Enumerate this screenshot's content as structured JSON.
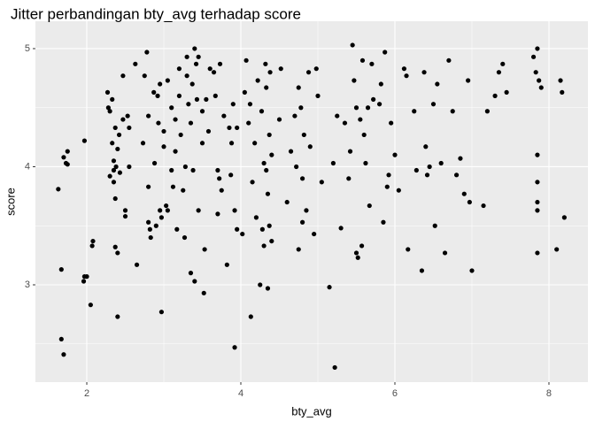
{
  "chart_data": {
    "type": "scatter",
    "title": "Jitter perbandingan bty_avg terhadap score",
    "x_label": "bty_avg",
    "y_label": "score",
    "color": "#000000",
    "grid": true,
    "xlim": [
      1.333,
      8.506
    ],
    "ylim": [
      2.176,
      5.232
    ],
    "xticks": [
      2,
      4,
      6,
      8
    ],
    "yticks": [
      3,
      4,
      5
    ],
    "minor_xticks": [
      3,
      5,
      7
    ],
    "minor_yticks": [
      2.5,
      3.5,
      4.5
    ],
    "x": [
      1.63,
      1.67,
      1.67,
      1.7,
      1.7,
      1.73,
      1.75,
      1.75,
      1.97,
      1.96,
      1.97,
      2.0,
      2.05,
      2.07,
      2.08,
      2.27,
      2.28,
      2.3,
      2.3,
      2.33,
      2.33,
      2.35,
      2.35,
      2.35,
      2.37,
      2.37,
      2.37,
      2.4,
      2.4,
      2.38,
      2.4,
      2.42,
      2.43,
      2.47,
      2.47,
      2.5,
      2.5,
      2.53,
      2.55,
      2.55,
      2.63,
      2.65,
      2.73,
      2.75,
      2.78,
      2.8,
      2.8,
      2.8,
      2.82,
      2.83,
      2.87,
      2.88,
      2.9,
      2.92,
      2.93,
      2.95,
      2.97,
      2.97,
      2.95,
      3.0,
      3.0,
      3.03,
      3.05,
      3.05,
      3.1,
      3.1,
      3.12,
      3.15,
      3.15,
      3.17,
      3.2,
      3.2,
      3.22,
      3.25,
      3.27,
      3.28,
      3.3,
      3.3,
      3.32,
      3.35,
      3.35,
      3.37,
      3.38,
      3.4,
      3.4,
      3.42,
      3.43,
      3.45,
      3.45,
      3.5,
      3.5,
      3.52,
      3.53,
      3.55,
      3.58,
      3.6,
      3.65,
      3.67,
      3.7,
      3.7,
      3.72,
      3.73,
      3.75,
      3.78,
      3.82,
      3.85,
      3.87,
      3.88,
      3.9,
      3.92,
      3.92,
      3.95,
      3.95,
      4.02,
      4.05,
      4.07,
      4.1,
      4.12,
      4.13,
      4.15,
      4.18,
      4.2,
      4.22,
      4.25,
      4.27,
      4.28,
      4.3,
      4.3,
      4.32,
      4.33,
      4.33,
      4.35,
      4.35,
      4.37,
      4.37,
      4.38,
      4.4,
      4.4,
      4.5,
      4.52,
      4.6,
      4.65,
      4.7,
      4.72,
      4.75,
      4.75,
      4.78,
      4.8,
      4.8,
      4.82,
      4.85,
      4.88,
      4.9,
      4.95,
      4.98,
      5.0,
      5.05,
      5.15,
      5.2,
      5.22,
      5.25,
      5.3,
      5.35,
      5.4,
      5.42,
      5.45,
      5.47,
      5.5,
      5.5,
      5.52,
      5.55,
      5.57,
      5.58,
      5.6,
      5.62,
      5.65,
      5.67,
      5.7,
      5.72,
      5.8,
      5.82,
      5.85,
      5.87,
      5.9,
      5.92,
      5.95,
      6.0,
      6.05,
      6.12,
      6.15,
      6.17,
      6.25,
      6.28,
      6.35,
      6.38,
      6.4,
      6.42,
      6.45,
      6.5,
      6.52,
      6.55,
      6.6,
      6.65,
      6.7,
      6.75,
      6.8,
      6.85,
      6.9,
      6.95,
      6.97,
      7.0,
      7.15,
      7.2,
      7.3,
      7.35,
      7.4,
      7.45,
      7.8,
      7.83,
      7.85,
      7.85,
      7.85,
      7.85,
      7.85,
      7.85,
      7.87,
      7.9,
      8.1,
      8.15,
      8.17,
      8.2
    ],
    "values": [
      3.81,
      3.13,
      2.54,
      2.41,
      4.08,
      4.03,
      4.13,
      4.02,
      4.22,
      3.03,
      3.07,
      3.07,
      2.83,
      3.33,
      3.37,
      4.63,
      4.5,
      4.47,
      3.92,
      4.57,
      4.2,
      4.05,
      3.97,
      3.87,
      4.33,
      3.73,
      3.32,
      3.27,
      2.73,
      4.0,
      4.15,
      4.27,
      3.95,
      4.77,
      4.4,
      3.63,
      3.58,
      4.43,
      4.33,
      4.0,
      4.87,
      3.17,
      4.2,
      4.77,
      4.97,
      4.43,
      3.83,
      3.53,
      3.47,
      3.4,
      4.63,
      4.03,
      3.5,
      4.6,
      4.37,
      4.7,
      3.57,
      2.77,
      3.63,
      4.3,
      4.17,
      3.67,
      3.63,
      4.73,
      4.5,
      3.97,
      3.83,
      4.4,
      4.13,
      3.47,
      4.83,
      4.6,
      4.27,
      3.8,
      3.4,
      4.0,
      4.93,
      4.77,
      4.53,
      3.1,
      4.37,
      4.7,
      3.97,
      5.0,
      3.03,
      4.87,
      4.57,
      4.93,
      3.63,
      4.2,
      4.47,
      2.93,
      3.3,
      4.57,
      4.3,
      4.83,
      4.8,
      4.6,
      3.97,
      3.6,
      3.9,
      4.87,
      3.8,
      4.43,
      3.17,
      4.33,
      3.93,
      4.2,
      4.53,
      2.47,
      3.63,
      4.33,
      3.47,
      3.43,
      4.63,
      4.9,
      4.37,
      4.53,
      2.73,
      3.87,
      4.2,
      3.57,
      4.73,
      3.0,
      4.47,
      3.47,
      3.33,
      4.03,
      4.87,
      3.97,
      4.67,
      2.97,
      3.77,
      4.27,
      3.5,
      4.8,
      3.37,
      4.1,
      4.4,
      4.83,
      3.7,
      4.13,
      4.43,
      4.0,
      3.3,
      4.67,
      4.5,
      3.9,
      3.53,
      4.27,
      3.63,
      4.8,
      4.17,
      3.43,
      4.83,
      4.6,
      3.87,
      2.98,
      4.03,
      2.3,
      4.43,
      3.48,
      4.37,
      3.9,
      4.13,
      5.03,
      4.73,
      4.5,
      3.27,
      3.23,
      4.4,
      3.33,
      4.9,
      4.27,
      4.03,
      4.5,
      3.67,
      4.87,
      4.57,
      4.53,
      4.7,
      3.53,
      4.97,
      3.83,
      3.93,
      4.37,
      4.1,
      3.8,
      4.83,
      4.77,
      3.3,
      4.47,
      3.97,
      3.12,
      4.8,
      4.17,
      3.93,
      4.0,
      4.53,
      3.5,
      4.7,
      4.03,
      3.27,
      4.9,
      4.47,
      3.93,
      4.07,
      3.77,
      4.73,
      3.7,
      3.12,
      3.67,
      4.47,
      4.6,
      4.8,
      4.87,
      4.63,
      4.93,
      4.8,
      5.0,
      4.1,
      3.87,
      3.7,
      3.63,
      3.27,
      4.73,
      4.67,
      3.3,
      4.73,
      4.63,
      3.57
    ]
  }
}
